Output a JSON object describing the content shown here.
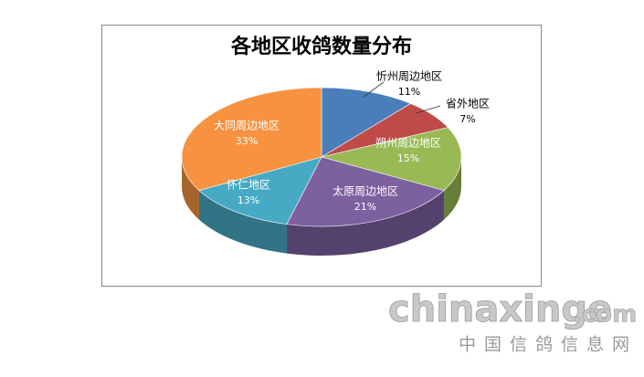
{
  "chart_data": {
    "type": "pie",
    "title": "各地区收鸽数量分布",
    "categories": [
      "忻州周边地区",
      "省外地区",
      "朔州周边地区",
      "太原周边地区",
      "怀仁地区",
      "大同周边地区"
    ],
    "values": [
      11,
      7,
      15,
      21,
      13,
      33
    ],
    "value_labels": [
      "11%",
      "7%",
      "15%",
      "21%",
      "13%",
      "33%"
    ],
    "colors": [
      "#4a7ebb",
      "#be4b48",
      "#98b954",
      "#7d60a0",
      "#46aac5",
      "#f69240"
    ]
  },
  "watermark": {
    "site": "chinaxinge",
    "domain": ".com",
    "name": "中国信鸽信息网"
  }
}
